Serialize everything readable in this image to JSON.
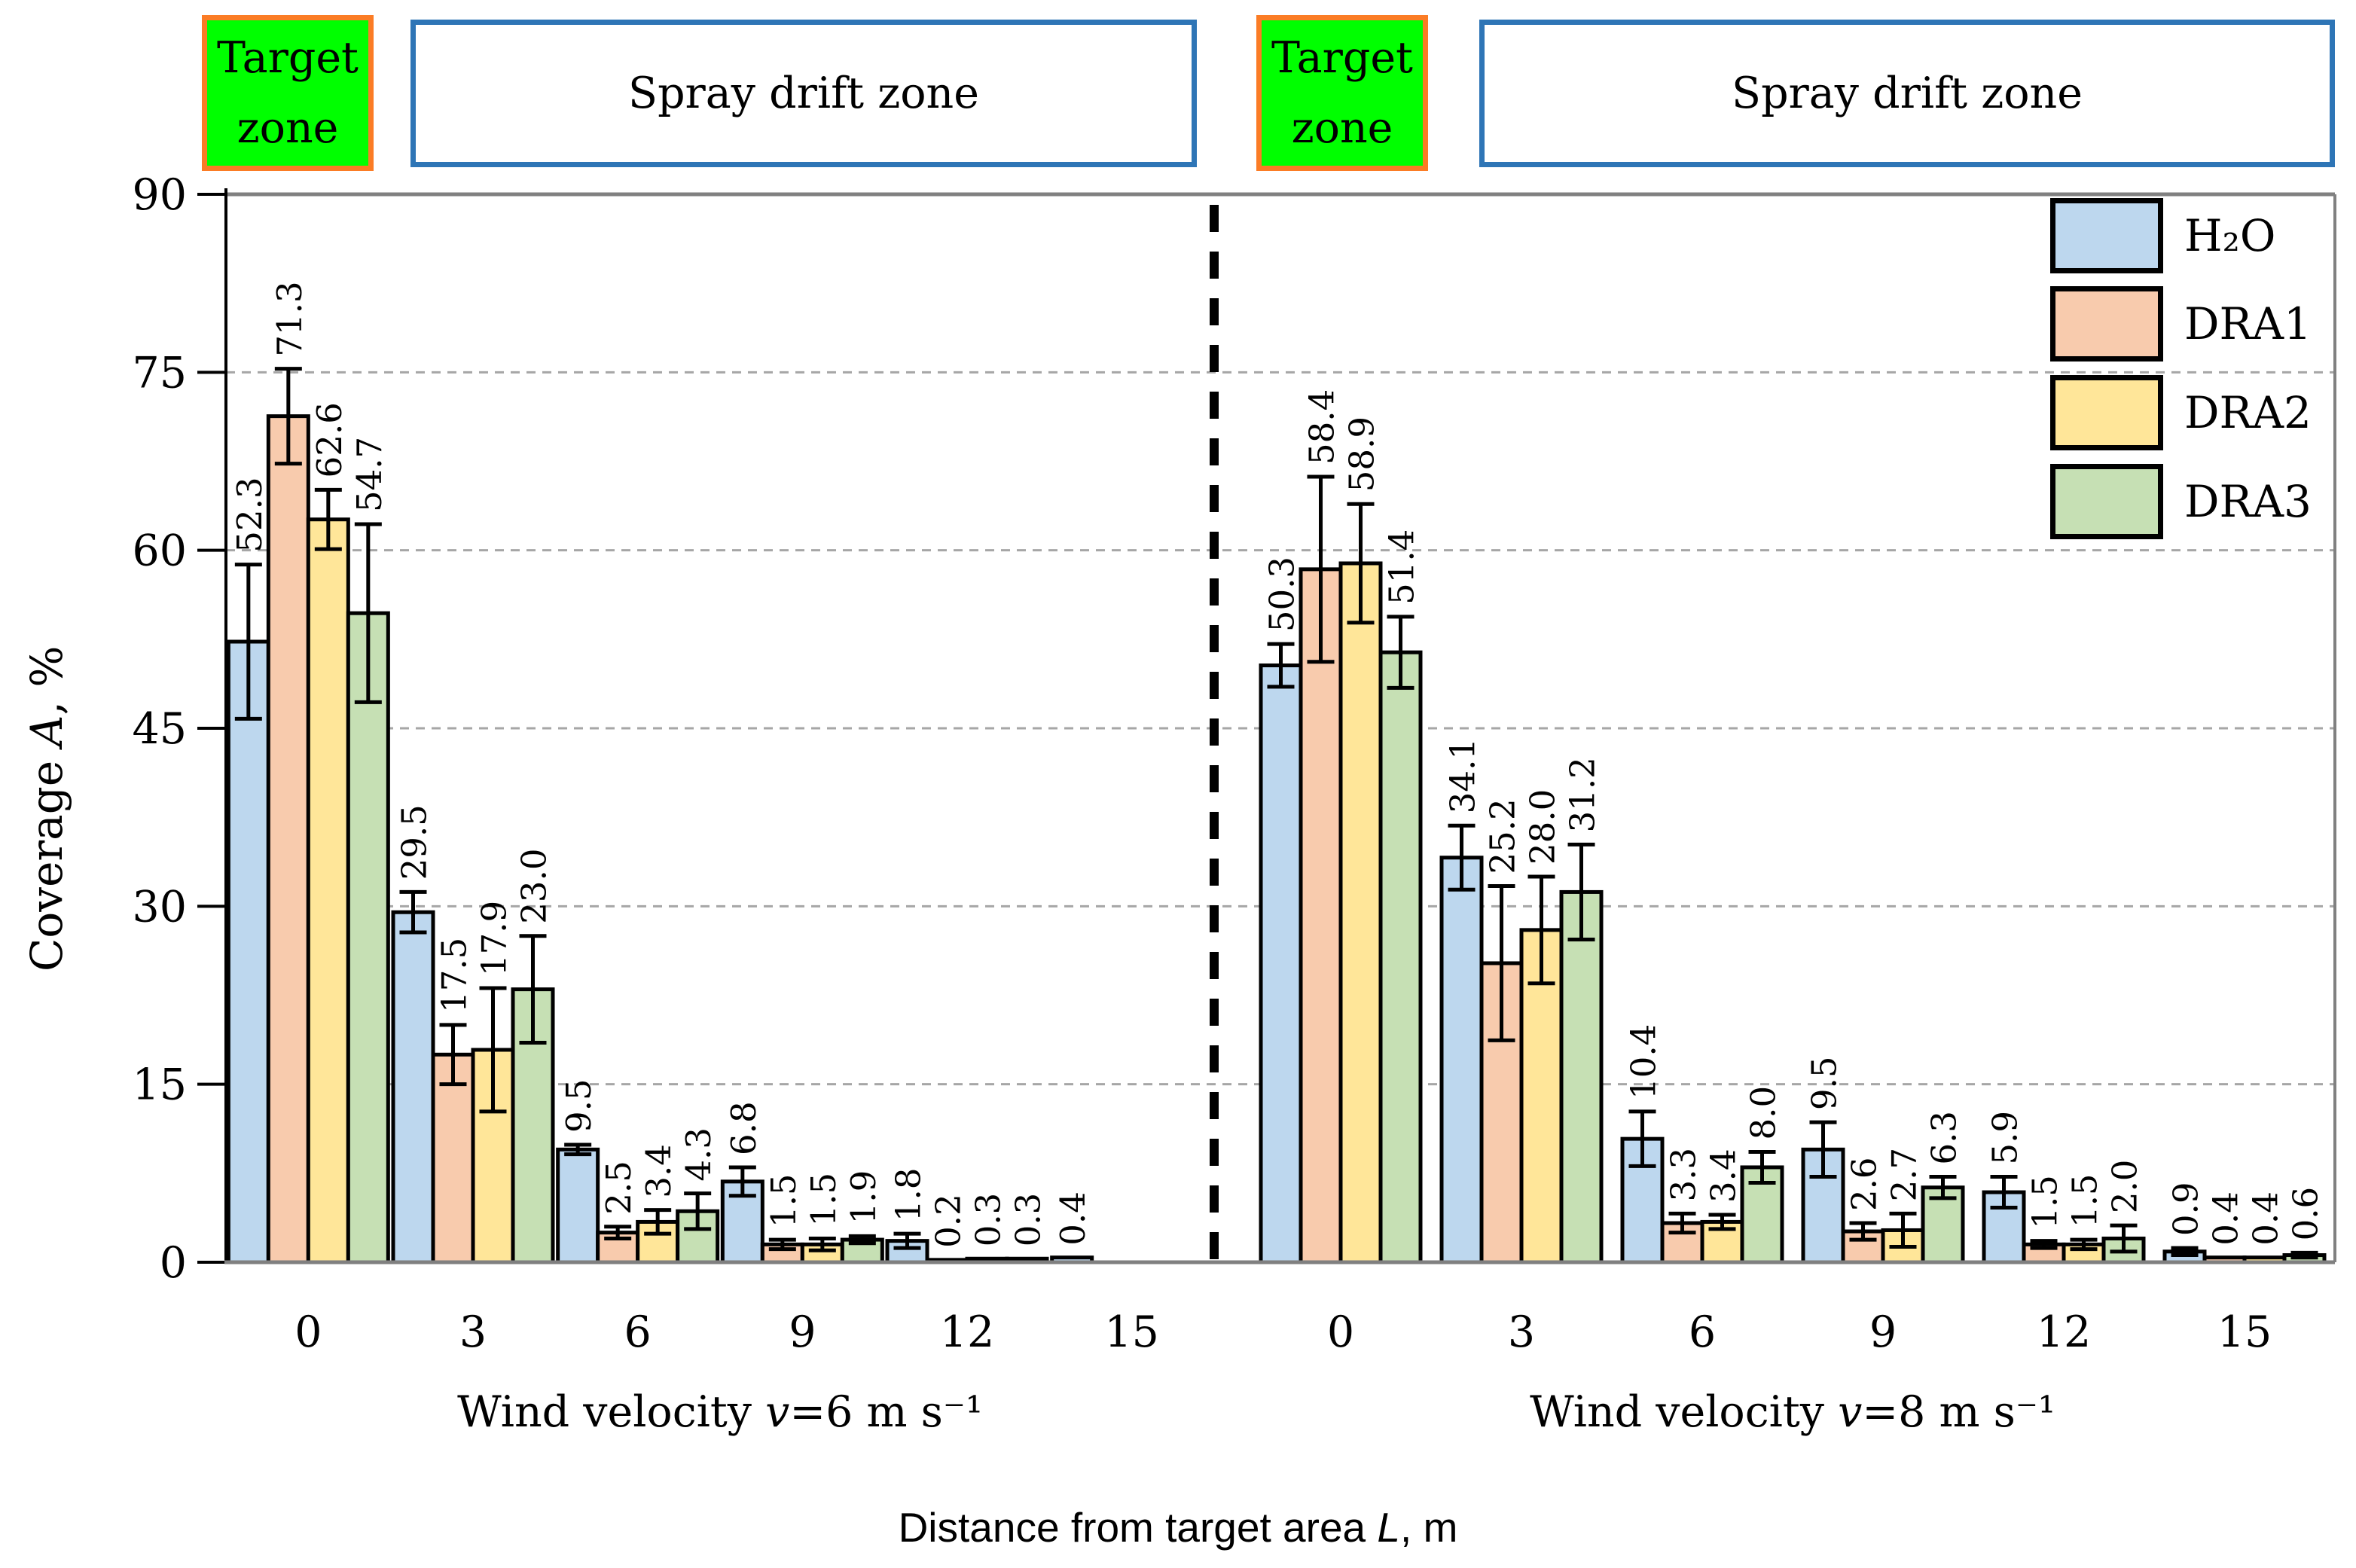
{
  "figure": {
    "zones": {
      "target_line1": "Target",
      "target_line2": "zone",
      "spray_label": "Spray drift zone",
      "target_fill": "#00FF00",
      "target_border": "#FB7C25",
      "spray_border": "#2E75B6"
    },
    "y_axis": {
      "title_pre": "Coverage  ",
      "title_var": "A",
      "title_post": ", %",
      "tick_labels": [
        "0",
        "15",
        "30",
        "45",
        "60",
        "75",
        "90"
      ]
    },
    "x_axis": {
      "title_pre": "Distance from target area  ",
      "title_var": "L",
      "title_post": ", m",
      "category_labels": [
        "0",
        "3",
        "6",
        "9",
        "12",
        "15"
      ]
    },
    "legend": {
      "items": [
        {
          "label": "H₂O",
          "color": "#BDD7EE"
        },
        {
          "label": "DRA1",
          "color": "#F8CBAD"
        },
        {
          "label": "DRA2",
          "color": "#FFE699"
        },
        {
          "label": "DRA3",
          "color": "#C6E0B4"
        }
      ]
    },
    "frame_colors": {
      "grid": "#A6A6A6",
      "axis_gray": "#808080",
      "axis_black": "#000000",
      "error_bar": "#000000"
    }
  },
  "chart_data": {
    "type": "bar",
    "title": "",
    "ylabel": "Coverage A, %",
    "xlabel": "Distance from target area L, m",
    "ylim": [
      0,
      90
    ],
    "yticks": [
      0,
      15,
      30,
      45,
      60,
      75,
      90
    ],
    "grid": "horizontal-dashed",
    "legend_position": "top-right-inside",
    "categories": [
      "0",
      "3",
      "6",
      "9",
      "12",
      "15"
    ],
    "series_names": [
      "H₂O",
      "DRA1",
      "DRA2",
      "DRA3"
    ],
    "panels": [
      {
        "title": {
          "pre": "Wind velocity ",
          "var": "v",
          "post": "=6 m s⁻¹"
        },
        "series": [
          {
            "name": "H₂O",
            "values": [
              52.3,
              29.5,
              9.5,
              6.8,
              1.8,
              0.4
            ],
            "errors": [
              6.5,
              1.7,
              0.4,
              1.2,
              0.6,
              null
            ]
          },
          {
            "name": "DRA1",
            "values": [
              71.3,
              17.5,
              2.5,
              1.5,
              0.2,
              null
            ],
            "errors": [
              4.0,
              2.5,
              0.5,
              0.4,
              null,
              null
            ]
          },
          {
            "name": "DRA2",
            "values": [
              62.6,
              17.9,
              3.4,
              1.5,
              0.3,
              null
            ],
            "errors": [
              2.5,
              5.2,
              1.0,
              0.5,
              null,
              null
            ]
          },
          {
            "name": "DRA3",
            "values": [
              54.7,
              23.0,
              4.3,
              1.9,
              0.3,
              null
            ],
            "errors": [
              7.5,
              4.5,
              1.5,
              0.3,
              null,
              null
            ]
          }
        ],
        "labels": [
          [
            "52.3",
            "29.5",
            "9.5",
            "6.8",
            "1.8",
            "0.4"
          ],
          [
            "71.3",
            "17.5",
            "2.5",
            "1.5",
            "0.2",
            null
          ],
          [
            "62.6",
            "17.9",
            "3.4",
            "1.5",
            "0.3",
            null
          ],
          [
            "54.7",
            "23.0",
            "4.3",
            "1.9",
            "0.3",
            null
          ]
        ]
      },
      {
        "title": {
          "pre": "Wind velocity ",
          "var": "v",
          "post": "=8 m s⁻¹"
        },
        "series": [
          {
            "name": "H₂O",
            "values": [
              50.3,
              34.1,
              10.4,
              9.5,
              5.9,
              0.9
            ],
            "errors": [
              1.8,
              2.7,
              2.3,
              2.3,
              1.3,
              0.3
            ]
          },
          {
            "name": "DRA1",
            "values": [
              58.4,
              25.2,
              3.3,
              2.6,
              1.5,
              0.4
            ],
            "errors": [
              7.8,
              6.5,
              0.8,
              0.7,
              0.3,
              null
            ]
          },
          {
            "name": "DRA2",
            "values": [
              58.9,
              28.0,
              3.4,
              2.7,
              1.5,
              0.4
            ],
            "errors": [
              5.0,
              4.5,
              0.6,
              1.4,
              0.4,
              null
            ]
          },
          {
            "name": "DRA3",
            "values": [
              51.4,
              31.2,
              8.0,
              6.3,
              2.0,
              0.6
            ],
            "errors": [
              3.0,
              4.0,
              1.3,
              0.9,
              1.1,
              0.2
            ]
          }
        ],
        "labels": [
          [
            "50.3",
            "34.1",
            "10.4",
            "9.5",
            "5.9",
            "0.9"
          ],
          [
            "58.4",
            "25.2",
            "3.3",
            "2.6",
            "1.5",
            "0.4"
          ],
          [
            "58.9",
            "28.0",
            "3.4",
            "2.7",
            "1.5",
            "0.4"
          ],
          [
            "51.4",
            "31.2",
            "8.0",
            "6.3",
            "2.0",
            "0.6"
          ]
        ]
      }
    ]
  }
}
